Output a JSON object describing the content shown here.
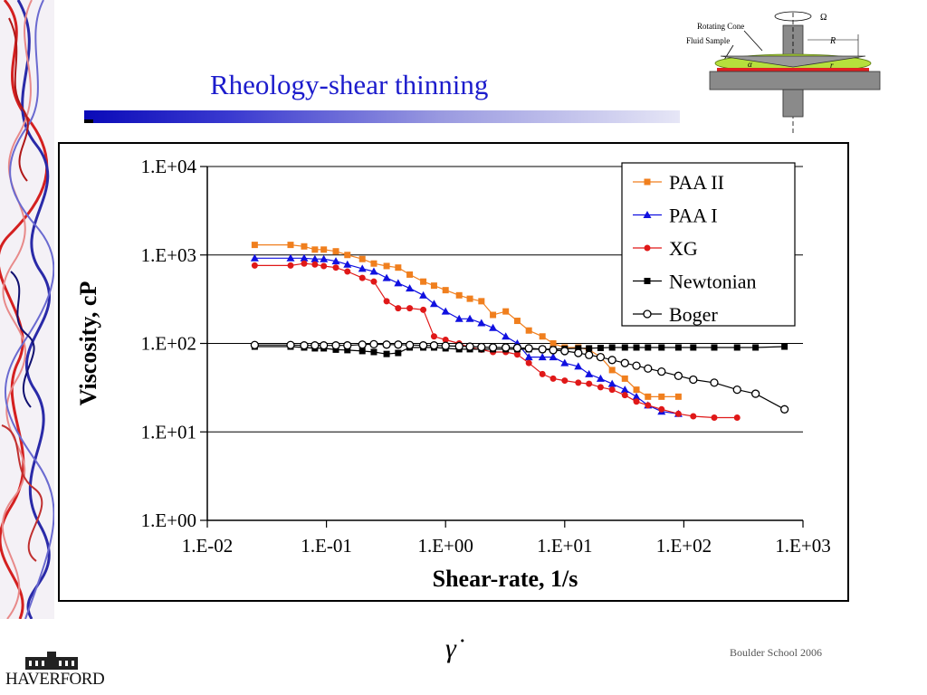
{
  "slide": {
    "title": "Rheology-shear thinning",
    "footer": "Boulder School 2006",
    "logo_text": "HAVERFORD"
  },
  "diagram": {
    "labels": {
      "rotating_cone": "Rotating Cone",
      "fluid_sample": "Fluid Sample",
      "omega": "Ω",
      "radius": "R",
      "alpha": "α",
      "r": "r"
    }
  },
  "colors": {
    "title": "#1c1ccc",
    "paa2": "#f07f1e",
    "paa1": "#1010e0",
    "xg": "#e01818",
    "newtonian": "#000000",
    "boger": "#000000"
  },
  "chart_data": {
    "type": "scatter",
    "xlabel": "Shear-rate, 1/s",
    "ylabel": "Viscosity, cP",
    "xscale": "log",
    "yscale": "log",
    "xlim": [
      0.01,
      1000
    ],
    "ylim": [
      1,
      10000
    ],
    "x_ticks": [
      "1.E-02",
      "1.E-01",
      "1.E+00",
      "1.E+01",
      "1.E+02",
      "1.E+03"
    ],
    "y_ticks": [
      "1.E+00",
      "1.E+01",
      "1.E+02",
      "1.E+03",
      "1.E+04"
    ],
    "grid": "horizontal",
    "legend_position": "top-right",
    "symbol_below_axis": "γ̇",
    "series": [
      {
        "name": "PAA II",
        "color": "#f07f1e",
        "marker": "square",
        "x": [
          0.025,
          0.05,
          0.065,
          0.08,
          0.095,
          0.12,
          0.15,
          0.2,
          0.25,
          0.32,
          0.4,
          0.5,
          0.65,
          0.8,
          1.0,
          1.3,
          1.6,
          2.0,
          2.5,
          3.2,
          4.0,
          5.0,
          6.5,
          8.0,
          10,
          13,
          16,
          20,
          25,
          32,
          40,
          50,
          65,
          90
        ],
        "y": [
          1300,
          1300,
          1250,
          1150,
          1150,
          1100,
          1000,
          900,
          800,
          750,
          720,
          600,
          500,
          450,
          400,
          350,
          320,
          300,
          210,
          230,
          180,
          140,
          120,
          100,
          90,
          90,
          85,
          70,
          50,
          40,
          30,
          25,
          25,
          25
        ]
      },
      {
        "name": "PAA I",
        "color": "#1010e0",
        "marker": "triangle",
        "x": [
          0.025,
          0.05,
          0.065,
          0.08,
          0.095,
          0.12,
          0.15,
          0.2,
          0.25,
          0.32,
          0.4,
          0.5,
          0.65,
          0.8,
          1.0,
          1.3,
          1.6,
          2.0,
          2.5,
          3.2,
          4.0,
          5.0,
          6.5,
          8.0,
          10,
          13,
          16,
          20,
          25,
          32,
          40,
          50,
          65,
          90
        ],
        "y": [
          920,
          920,
          920,
          900,
          900,
          850,
          780,
          700,
          650,
          550,
          480,
          420,
          350,
          280,
          230,
          190,
          190,
          170,
          150,
          120,
          100,
          70,
          70,
          70,
          60,
          55,
          45,
          40,
          35,
          30,
          25,
          20,
          17,
          16
        ]
      },
      {
        "name": "XG",
        "color": "#e01818",
        "marker": "circle",
        "x": [
          0.025,
          0.05,
          0.065,
          0.08,
          0.095,
          0.12,
          0.15,
          0.2,
          0.25,
          0.32,
          0.4,
          0.5,
          0.65,
          0.8,
          1.0,
          1.3,
          1.6,
          2.0,
          2.5,
          3.2,
          4.0,
          5.0,
          6.5,
          8.0,
          10,
          13,
          16,
          20,
          25,
          32,
          40,
          50,
          65,
          90,
          120,
          180,
          280
        ],
        "y": [
          760,
          760,
          800,
          780,
          750,
          720,
          650,
          550,
          500,
          300,
          250,
          250,
          240,
          120,
          110,
          100,
          90,
          85,
          80,
          80,
          75,
          60,
          45,
          40,
          38,
          36,
          35,
          32,
          30,
          26,
          22,
          20,
          18,
          16,
          15,
          14.5,
          14.5
        ]
      },
      {
        "name": "Newtonian",
        "color": "#000000",
        "marker": "square",
        "x": [
          0.025,
          0.05,
          0.065,
          0.08,
          0.095,
          0.12,
          0.15,
          0.2,
          0.25,
          0.32,
          0.4,
          0.5,
          0.65,
          0.8,
          1.0,
          1.3,
          1.6,
          2.0,
          2.5,
          3.2,
          4.0,
          5.0,
          6.5,
          8.0,
          10,
          13,
          16,
          20,
          25,
          32,
          40,
          50,
          65,
          90,
          120,
          180,
          280,
          400,
          700
        ],
        "y": [
          92,
          92,
          90,
          88,
          88,
          85,
          84,
          82,
          80,
          76,
          78,
          90,
          90,
          90,
          88,
          86,
          86,
          86,
          86,
          86,
          86,
          86,
          86,
          86,
          87,
          88,
          88,
          89,
          90,
          90,
          90,
          90,
          90,
          90,
          90,
          90,
          90,
          90,
          92
        ]
      },
      {
        "name": "Boger",
        "color": "#000000",
        "marker": "open-circle",
        "x": [
          0.025,
          0.05,
          0.065,
          0.08,
          0.095,
          0.12,
          0.15,
          0.2,
          0.25,
          0.32,
          0.4,
          0.5,
          0.65,
          0.8,
          1.0,
          1.3,
          1.6,
          2.0,
          2.5,
          3.2,
          4.0,
          5.0,
          6.5,
          8.0,
          10,
          13,
          16,
          20,
          25,
          32,
          40,
          50,
          65,
          90,
          120,
          180,
          280,
          400,
          700
        ],
        "y": [
          96,
          96,
          95,
          95,
          95,
          95,
          95,
          97,
          98,
          97,
          97,
          96,
          95,
          95,
          94,
          93,
          92,
          91,
          90,
          90,
          89,
          88,
          86,
          84,
          82,
          78,
          74,
          70,
          65,
          60,
          56,
          52,
          48,
          43,
          39,
          36,
          30,
          27,
          18
        ]
      }
    ]
  }
}
